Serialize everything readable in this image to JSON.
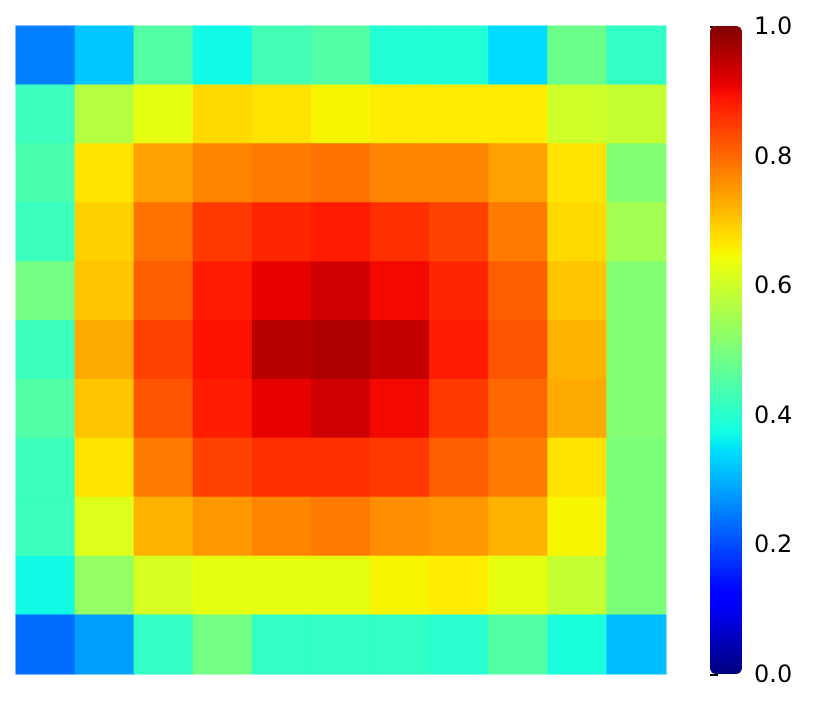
{
  "chart_data": {
    "type": "heatmap",
    "categories": [
      null,
      null,
      null,
      null,
      null,
      null,
      null,
      null,
      null,
      null,
      null
    ],
    "y_categories": [
      null,
      null,
      null,
      null,
      null,
      null,
      null,
      null,
      null,
      null,
      null
    ],
    "cells": [
      [
        0.25,
        0.32,
        0.45,
        0.37,
        0.43,
        0.45,
        0.39,
        0.39,
        0.34,
        0.48,
        0.41
      ],
      [
        0.42,
        0.57,
        0.63,
        0.68,
        0.67,
        0.65,
        0.66,
        0.66,
        0.66,
        0.6,
        0.59
      ],
      [
        0.44,
        0.67,
        0.74,
        0.77,
        0.78,
        0.79,
        0.77,
        0.77,
        0.74,
        0.67,
        0.51
      ],
      [
        0.42,
        0.69,
        0.79,
        0.85,
        0.87,
        0.88,
        0.86,
        0.84,
        0.78,
        0.68,
        0.55
      ],
      [
        0.49,
        0.7,
        0.81,
        0.88,
        0.91,
        0.93,
        0.9,
        0.87,
        0.81,
        0.7,
        0.51
      ],
      [
        0.42,
        0.73,
        0.84,
        0.89,
        0.95,
        0.96,
        0.94,
        0.88,
        0.82,
        0.72,
        0.51
      ],
      [
        0.45,
        0.7,
        0.82,
        0.88,
        0.91,
        0.93,
        0.9,
        0.85,
        0.8,
        0.73,
        0.51
      ],
      [
        0.42,
        0.67,
        0.78,
        0.84,
        0.86,
        0.86,
        0.85,
        0.81,
        0.78,
        0.67,
        0.5
      ],
      [
        0.42,
        0.62,
        0.72,
        0.75,
        0.77,
        0.78,
        0.76,
        0.75,
        0.72,
        0.65,
        0.5
      ],
      [
        0.37,
        0.53,
        0.61,
        0.63,
        0.63,
        0.63,
        0.65,
        0.66,
        0.63,
        0.59,
        0.5
      ],
      [
        0.23,
        0.28,
        0.41,
        0.49,
        0.41,
        0.41,
        0.41,
        0.4,
        0.45,
        0.38,
        0.31
      ]
    ],
    "clim": [
      0,
      1
    ],
    "cticks": [
      {
        "value": 0,
        "label": "0.0"
      },
      {
        "value": 0.2,
        "label": "0.2"
      },
      {
        "value": 0.4,
        "label": "0.4"
      },
      {
        "value": 0.6,
        "label": "0.6"
      },
      {
        "value": 0.8,
        "label": "0.8"
      },
      {
        "value": 1,
        "label": "1.0"
      }
    ]
  }
}
